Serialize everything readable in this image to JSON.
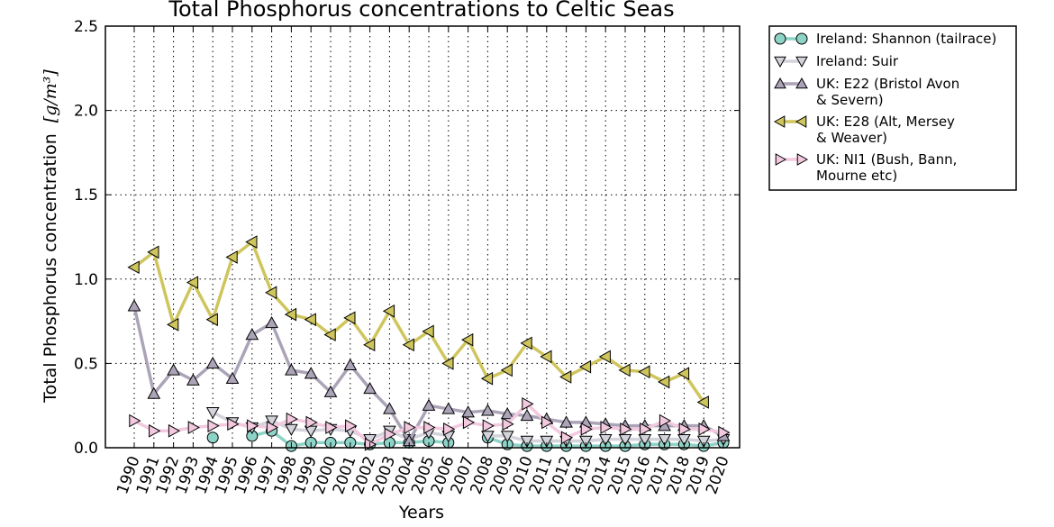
{
  "chart_data": {
    "type": "line",
    "title": "Total Phosphorus concentrations to Celtic Seas",
    "xlabel": "Years",
    "ylabel": "Total Phosphorus concentration",
    "ylabel_unit": "[g/m³]",
    "ylim": [
      0,
      2.5
    ],
    "yticks": [
      "0.0",
      "0.5",
      "1.0",
      "1.5",
      "2.0",
      "2.5"
    ],
    "grid": true,
    "legend_position": "outside-right",
    "categories": [
      "1990",
      "1991",
      "1992",
      "1993",
      "1994",
      "1995",
      "1996",
      "1997",
      "1998",
      "1999",
      "2000",
      "2001",
      "2002",
      "2003",
      "2004",
      "2005",
      "2006",
      "2007",
      "2008",
      "2009",
      "2010",
      "2011",
      "2012",
      "2013",
      "2014",
      "2015",
      "2016",
      "2017",
      "2018",
      "2019",
      "2020"
    ],
    "series": [
      {
        "name": "Ireland: Shannon (tailrace)",
        "name_lines": [
          "Ireland: Shannon (tailrace)"
        ],
        "marker": "circle",
        "color": "#8ed3c7",
        "values": [
          null,
          null,
          null,
          null,
          0.06,
          null,
          0.07,
          0.1,
          0.01,
          0.03,
          0.03,
          0.03,
          0.02,
          0.03,
          0.03,
          0.04,
          0.03,
          null,
          0.06,
          0.02,
          0.01,
          0.01,
          0.01,
          0.01,
          0.01,
          0.01,
          0.02,
          0.02,
          0.02,
          0.01,
          0.03
        ]
      },
      {
        "name": "Ireland: Suir",
        "name_lines": [
          "Ireland: Suir"
        ],
        "marker": "triangle-down",
        "color": "#d3d3db",
        "values": [
          null,
          null,
          null,
          null,
          0.21,
          0.15,
          0.12,
          0.16,
          0.11,
          0.1,
          0.11,
          0.1,
          0.05,
          0.1,
          0.05,
          0.09,
          0.07,
          null,
          0.07,
          0.07,
          0.04,
          0.04,
          0.04,
          0.04,
          0.05,
          0.05,
          0.05,
          0.05,
          0.05,
          0.04,
          0.05
        ]
      },
      {
        "name": "UK: E22 (Bristol Avon & Severn)",
        "name_lines": [
          "UK: E22 (Bristol Avon",
          "& Severn)"
        ],
        "marker": "triangle-up",
        "color": "#aba3b7",
        "values": [
          0.84,
          0.32,
          0.46,
          0.4,
          0.5,
          0.41,
          0.67,
          0.74,
          0.46,
          0.44,
          0.33,
          0.49,
          0.35,
          0.23,
          0.04,
          0.25,
          0.23,
          0.21,
          0.22,
          0.2,
          0.19,
          0.17,
          0.15,
          0.15,
          0.14,
          0.13,
          0.13,
          0.13,
          0.13,
          0.13,
          0.07
        ]
      },
      {
        "name": "UK: E28 (Alt, Mersey & Weaver)",
        "name_lines": [
          "UK: E28 (Alt, Mersey",
          "& Weaver)"
        ],
        "marker": "triangle-left",
        "color": "#cfc55d",
        "values": [
          1.07,
          1.16,
          0.73,
          0.98,
          0.76,
          1.13,
          1.22,
          0.92,
          0.79,
          0.76,
          0.67,
          0.77,
          0.61,
          0.81,
          0.61,
          0.69,
          0.5,
          0.64,
          0.41,
          0.46,
          0.62,
          0.54,
          0.42,
          0.48,
          0.54,
          0.46,
          0.45,
          0.39,
          0.44,
          0.27,
          null
        ]
      },
      {
        "name": "UK: NI1 (Bush, Bann, Mourne etc)",
        "name_lines": [
          "UK: NI1 (Bush, Bann,",
          "Mourne etc)"
        ],
        "marker": "triangle-right",
        "color": "#f3c9df",
        "values": [
          0.16,
          0.1,
          0.1,
          0.12,
          0.13,
          0.14,
          0.13,
          0.12,
          0.17,
          0.15,
          0.12,
          0.13,
          0.02,
          0.08,
          0.12,
          0.12,
          0.11,
          0.15,
          0.13,
          0.14,
          0.26,
          0.15,
          0.06,
          0.11,
          0.12,
          0.11,
          0.11,
          0.16,
          0.11,
          0.11,
          0.09
        ]
      }
    ]
  }
}
